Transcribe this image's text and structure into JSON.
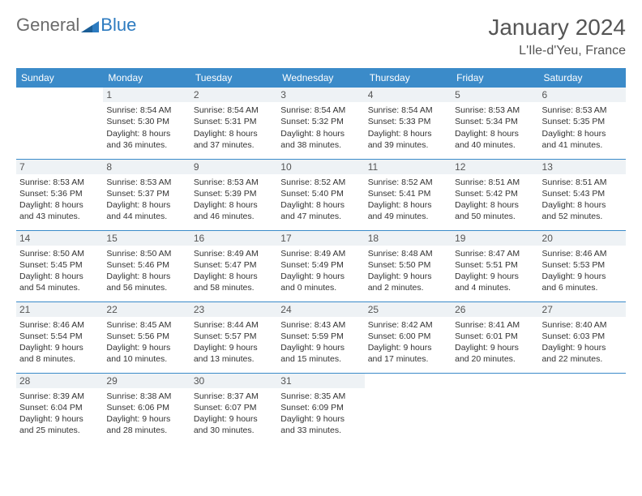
{
  "logo": {
    "text1": "General",
    "text2": "Blue"
  },
  "title": "January 2024",
  "location": "L'Ile-d'Yeu, France",
  "header_color": "#3b8bc9",
  "weekdays": [
    "Sunday",
    "Monday",
    "Tuesday",
    "Wednesday",
    "Thursday",
    "Friday",
    "Saturday"
  ],
  "weeks": [
    [
      {
        "n": "",
        "r": "",
        "s": "",
        "d1": "",
        "d2": ""
      },
      {
        "n": "1",
        "r": "Sunrise: 8:54 AM",
        "s": "Sunset: 5:30 PM",
        "d1": "Daylight: 8 hours",
        "d2": "and 36 minutes."
      },
      {
        "n": "2",
        "r": "Sunrise: 8:54 AM",
        "s": "Sunset: 5:31 PM",
        "d1": "Daylight: 8 hours",
        "d2": "and 37 minutes."
      },
      {
        "n": "3",
        "r": "Sunrise: 8:54 AM",
        "s": "Sunset: 5:32 PM",
        "d1": "Daylight: 8 hours",
        "d2": "and 38 minutes."
      },
      {
        "n": "4",
        "r": "Sunrise: 8:54 AM",
        "s": "Sunset: 5:33 PM",
        "d1": "Daylight: 8 hours",
        "d2": "and 39 minutes."
      },
      {
        "n": "5",
        "r": "Sunrise: 8:53 AM",
        "s": "Sunset: 5:34 PM",
        "d1": "Daylight: 8 hours",
        "d2": "and 40 minutes."
      },
      {
        "n": "6",
        "r": "Sunrise: 8:53 AM",
        "s": "Sunset: 5:35 PM",
        "d1": "Daylight: 8 hours",
        "d2": "and 41 minutes."
      }
    ],
    [
      {
        "n": "7",
        "r": "Sunrise: 8:53 AM",
        "s": "Sunset: 5:36 PM",
        "d1": "Daylight: 8 hours",
        "d2": "and 43 minutes."
      },
      {
        "n": "8",
        "r": "Sunrise: 8:53 AM",
        "s": "Sunset: 5:37 PM",
        "d1": "Daylight: 8 hours",
        "d2": "and 44 minutes."
      },
      {
        "n": "9",
        "r": "Sunrise: 8:53 AM",
        "s": "Sunset: 5:39 PM",
        "d1": "Daylight: 8 hours",
        "d2": "and 46 minutes."
      },
      {
        "n": "10",
        "r": "Sunrise: 8:52 AM",
        "s": "Sunset: 5:40 PM",
        "d1": "Daylight: 8 hours",
        "d2": "and 47 minutes."
      },
      {
        "n": "11",
        "r": "Sunrise: 8:52 AM",
        "s": "Sunset: 5:41 PM",
        "d1": "Daylight: 8 hours",
        "d2": "and 49 minutes."
      },
      {
        "n": "12",
        "r": "Sunrise: 8:51 AM",
        "s": "Sunset: 5:42 PM",
        "d1": "Daylight: 8 hours",
        "d2": "and 50 minutes."
      },
      {
        "n": "13",
        "r": "Sunrise: 8:51 AM",
        "s": "Sunset: 5:43 PM",
        "d1": "Daylight: 8 hours",
        "d2": "and 52 minutes."
      }
    ],
    [
      {
        "n": "14",
        "r": "Sunrise: 8:50 AM",
        "s": "Sunset: 5:45 PM",
        "d1": "Daylight: 8 hours",
        "d2": "and 54 minutes."
      },
      {
        "n": "15",
        "r": "Sunrise: 8:50 AM",
        "s": "Sunset: 5:46 PM",
        "d1": "Daylight: 8 hours",
        "d2": "and 56 minutes."
      },
      {
        "n": "16",
        "r": "Sunrise: 8:49 AM",
        "s": "Sunset: 5:47 PM",
        "d1": "Daylight: 8 hours",
        "d2": "and 58 minutes."
      },
      {
        "n": "17",
        "r": "Sunrise: 8:49 AM",
        "s": "Sunset: 5:49 PM",
        "d1": "Daylight: 9 hours",
        "d2": "and 0 minutes."
      },
      {
        "n": "18",
        "r": "Sunrise: 8:48 AM",
        "s": "Sunset: 5:50 PM",
        "d1": "Daylight: 9 hours",
        "d2": "and 2 minutes."
      },
      {
        "n": "19",
        "r": "Sunrise: 8:47 AM",
        "s": "Sunset: 5:51 PM",
        "d1": "Daylight: 9 hours",
        "d2": "and 4 minutes."
      },
      {
        "n": "20",
        "r": "Sunrise: 8:46 AM",
        "s": "Sunset: 5:53 PM",
        "d1": "Daylight: 9 hours",
        "d2": "and 6 minutes."
      }
    ],
    [
      {
        "n": "21",
        "r": "Sunrise: 8:46 AM",
        "s": "Sunset: 5:54 PM",
        "d1": "Daylight: 9 hours",
        "d2": "and 8 minutes."
      },
      {
        "n": "22",
        "r": "Sunrise: 8:45 AM",
        "s": "Sunset: 5:56 PM",
        "d1": "Daylight: 9 hours",
        "d2": "and 10 minutes."
      },
      {
        "n": "23",
        "r": "Sunrise: 8:44 AM",
        "s": "Sunset: 5:57 PM",
        "d1": "Daylight: 9 hours",
        "d2": "and 13 minutes."
      },
      {
        "n": "24",
        "r": "Sunrise: 8:43 AM",
        "s": "Sunset: 5:59 PM",
        "d1": "Daylight: 9 hours",
        "d2": "and 15 minutes."
      },
      {
        "n": "25",
        "r": "Sunrise: 8:42 AM",
        "s": "Sunset: 6:00 PM",
        "d1": "Daylight: 9 hours",
        "d2": "and 17 minutes."
      },
      {
        "n": "26",
        "r": "Sunrise: 8:41 AM",
        "s": "Sunset: 6:01 PM",
        "d1": "Daylight: 9 hours",
        "d2": "and 20 minutes."
      },
      {
        "n": "27",
        "r": "Sunrise: 8:40 AM",
        "s": "Sunset: 6:03 PM",
        "d1": "Daylight: 9 hours",
        "d2": "and 22 minutes."
      }
    ],
    [
      {
        "n": "28",
        "r": "Sunrise: 8:39 AM",
        "s": "Sunset: 6:04 PM",
        "d1": "Daylight: 9 hours",
        "d2": "and 25 minutes."
      },
      {
        "n": "29",
        "r": "Sunrise: 8:38 AM",
        "s": "Sunset: 6:06 PM",
        "d1": "Daylight: 9 hours",
        "d2": "and 28 minutes."
      },
      {
        "n": "30",
        "r": "Sunrise: 8:37 AM",
        "s": "Sunset: 6:07 PM",
        "d1": "Daylight: 9 hours",
        "d2": "and 30 minutes."
      },
      {
        "n": "31",
        "r": "Sunrise: 8:35 AM",
        "s": "Sunset: 6:09 PM",
        "d1": "Daylight: 9 hours",
        "d2": "and 33 minutes."
      },
      {
        "n": "",
        "r": "",
        "s": "",
        "d1": "",
        "d2": ""
      },
      {
        "n": "",
        "r": "",
        "s": "",
        "d1": "",
        "d2": ""
      },
      {
        "n": "",
        "r": "",
        "s": "",
        "d1": "",
        "d2": ""
      }
    ]
  ]
}
